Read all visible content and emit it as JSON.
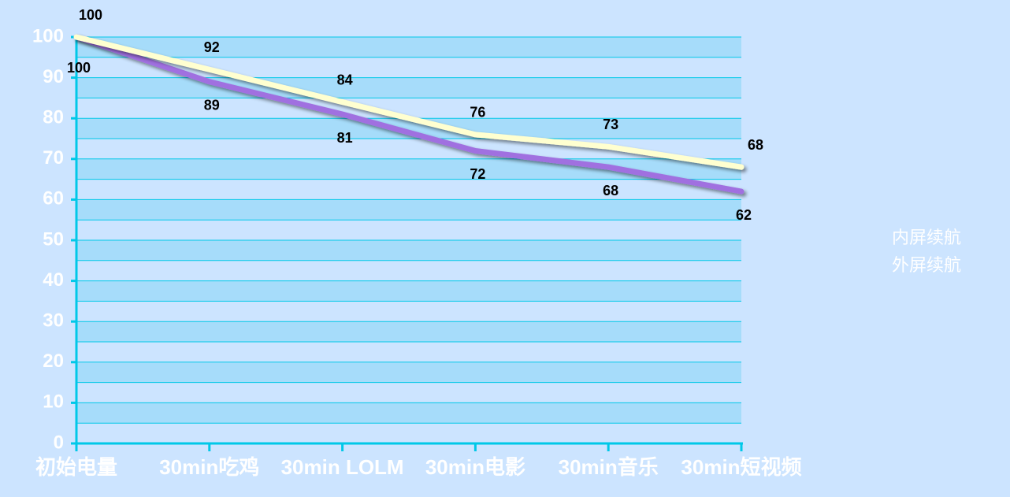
{
  "chart_data": {
    "type": "line",
    "categories": [
      "初始电量",
      "30min吃鸡",
      "30min LOLM",
      "30min电影",
      "30min音乐",
      "30min短视频"
    ],
    "series": [
      {
        "name": "内屏续航",
        "color": "#a070e0",
        "values": [
          100,
          89,
          81,
          72,
          68,
          62
        ]
      },
      {
        "name": "外屏续航",
        "color": "#ffffd0",
        "values": [
          100,
          92,
          84,
          76,
          73,
          68
        ]
      }
    ],
    "ylim": [
      0,
      100
    ],
    "yticks": [
      0,
      10,
      20,
      30,
      40,
      50,
      60,
      70,
      80,
      90,
      100
    ],
    "grid": true,
    "legend": "right"
  }
}
